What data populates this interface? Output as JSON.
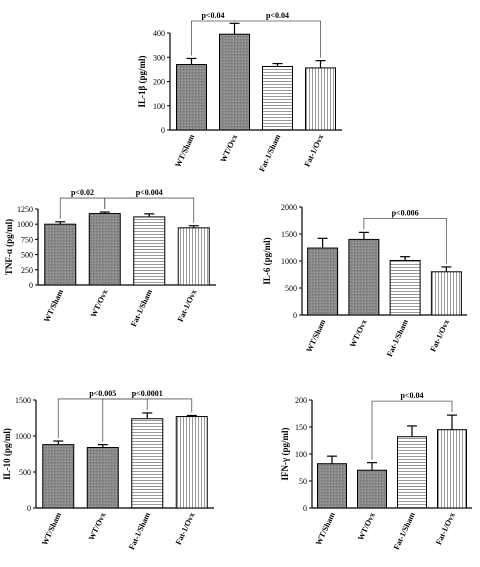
{
  "chart_data": [
    {
      "type": "bar",
      "ylabel": "IL-1β (pg/ml)",
      "categories": [
        "WT/Sham",
        "WT/Ovx",
        "Fat-1/Sham",
        "Fat-1/Ovx"
      ],
      "values": [
        270,
        395,
        262,
        256
      ],
      "errors": [
        25,
        45,
        12,
        30
      ],
      "ylim": [
        0,
        400
      ],
      "yticks": [
        "0",
        "100",
        "200",
        "300",
        "400"
      ],
      "annotations": [
        {
          "text": "p<0.04",
          "from": 0,
          "to": 1
        },
        {
          "text": "p<0.04",
          "from": 1,
          "to": 3
        }
      ]
    },
    {
      "type": "bar",
      "ylabel": "TNF-α (pg/ml)",
      "categories": [
        "WT/Sham",
        "WT/Ovx",
        "Fat-1/Sham",
        "Fat-1/Ovx"
      ],
      "values": [
        1000,
        1175,
        1120,
        940
      ],
      "errors": [
        40,
        25,
        50,
        35
      ],
      "ylim": [
        0,
        1250
      ],
      "yticks": [
        "0",
        "250",
        "500",
        "750",
        "1000",
        "1250"
      ],
      "annotations": [
        {
          "text": "p<0.02",
          "from": 0,
          "to": 1
        },
        {
          "text": "p<0.004",
          "from": 1,
          "to": 3
        }
      ]
    },
    {
      "type": "bar",
      "ylabel": "IL-6 (pg/ml)",
      "categories": [
        "WT/Sham",
        "WT/Ovx",
        "Fat-1/Sham",
        "Fat-1/Ovx"
      ],
      "values": [
        1240,
        1400,
        1010,
        800
      ],
      "errors": [
        180,
        130,
        70,
        90
      ],
      "ylim": [
        0,
        2000
      ],
      "yticks": [
        "0",
        "500",
        "1000",
        "1500",
        "2000"
      ],
      "annotations": [
        {
          "text": "p<0.006",
          "from": 1,
          "to": 3
        }
      ]
    },
    {
      "type": "bar",
      "ylabel": "IL-10 (pg/ml)",
      "categories": [
        "WT/Sham",
        "WT/Ovx",
        "Fat-1/Sham",
        "Fat-1/Ovx"
      ],
      "values": [
        880,
        840,
        1240,
        1270
      ],
      "errors": [
        50,
        40,
        80,
        15
      ],
      "ylim": [
        0,
        1500
      ],
      "yticks": [
        "0",
        "500",
        "1000",
        "1500"
      ],
      "annotations": [
        {
          "text": "p<0.005",
          "from": 0,
          "to": 2
        },
        {
          "text": "p<0.0001",
          "from": 1,
          "to": 3
        }
      ]
    },
    {
      "type": "bar",
      "ylabel": "IFN-γ (pg/ml)",
      "categories": [
        "WT/Sham",
        "WT/Ovx",
        "Fat-1/Sham",
        "Fat-1/Ovx"
      ],
      "values": [
        82,
        70,
        132,
        145
      ],
      "errors": [
        14,
        14,
        20,
        27
      ],
      "ylim": [
        0,
        200
      ],
      "yticks": [
        "0",
        "50",
        "100",
        "150",
        "200"
      ],
      "annotations": [
        {
          "text": "p<0.04",
          "from": 1,
          "to": 3
        }
      ]
    }
  ]
}
